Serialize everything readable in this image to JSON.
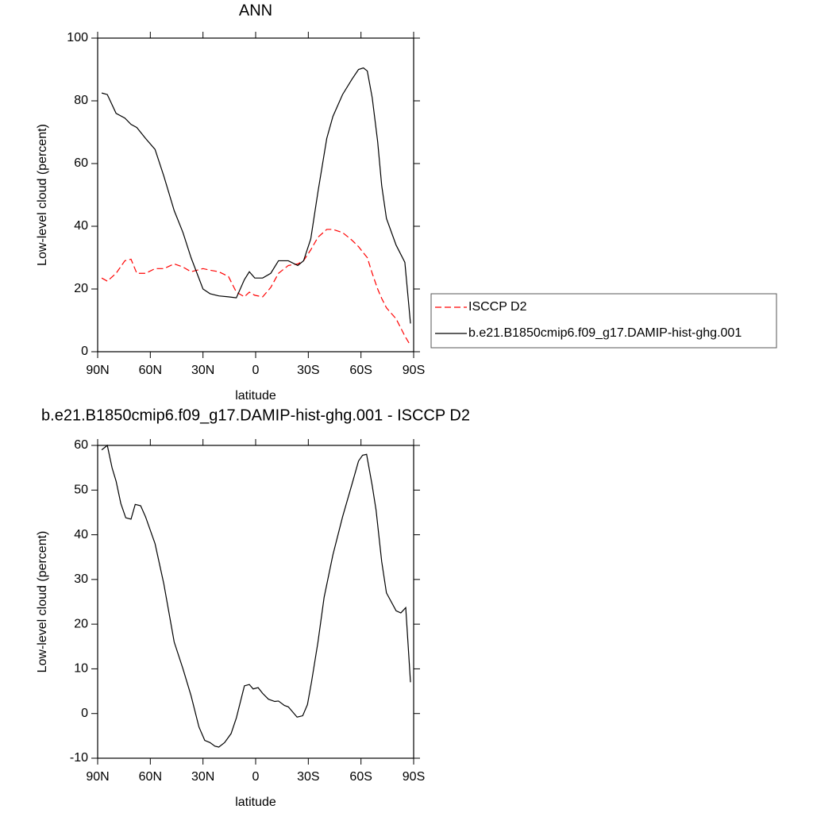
{
  "chart_data": [
    {
      "type": "line",
      "title": "ANN",
      "xlabel": "latitude",
      "ylabel": "Low-level cloud (percent)",
      "xlim": [
        90,
        -90
      ],
      "ylim": [
        0,
        100
      ],
      "xticks": [
        {
          "value": 90,
          "label": "90N"
        },
        {
          "value": 60,
          "label": "60N"
        },
        {
          "value": 30,
          "label": "30N"
        },
        0,
        {
          "value": -30,
          "label": "30S"
        },
        {
          "value": -60,
          "label": "60S"
        },
        {
          "value": -90,
          "label": "90S"
        }
      ],
      "yticks": [
        0,
        20,
        40,
        60,
        80,
        100
      ],
      "legend": "outside right",
      "x": [
        87.7,
        84.5,
        79.5,
        74.5,
        71,
        67.7,
        62.7,
        57.3,
        52.3,
        46.4,
        41.4,
        36.8,
        30,
        26,
        21,
        15.5,
        11,
        6.4,
        3.6,
        0.5,
        -4,
        -8.6,
        -13,
        -18.6,
        -24,
        -27.3,
        -31.4,
        -35.5,
        -40.5,
        -44,
        -49.5,
        -55,
        -58.6,
        -61.4,
        -63.6,
        -66.4,
        -69.5,
        -71.8,
        -74.5,
        -80,
        -85,
        -88.2
      ],
      "series": [
        {
          "name": "ISCCP D2",
          "color": "#ff0000",
          "dash": true,
          "values": [
            23.5,
            22.5,
            25,
            29,
            29.5,
            25,
            25,
            26.5,
            26.5,
            28,
            27,
            25.5,
            26.5,
            26,
            25.5,
            24,
            19,
            17.5,
            19,
            18,
            17.5,
            20.5,
            25,
            27.5,
            28,
            29,
            32.5,
            36.5,
            39,
            39,
            38,
            35.5,
            33.5,
            31.5,
            30,
            25,
            20,
            17,
            14,
            10.5,
            5,
            2
          ]
        },
        {
          "name": "b.e21.B1850cmip6.f09_g17.DAMIP-hist-ghg.001",
          "color": "#000000",
          "dash": false,
          "values": [
            82.5,
            82,
            76,
            74.5,
            72.5,
            71.5,
            68,
            64.5,
            56,
            45,
            38,
            30,
            20,
            18.5,
            17.8,
            17.5,
            17.2,
            23,
            25.5,
            23.5,
            23.5,
            25,
            29,
            29,
            27.5,
            29,
            36,
            51,
            68,
            75,
            82,
            87,
            90,
            90.5,
            89.5,
            81,
            67,
            53,
            42.5,
            34,
            28.5,
            9
          ]
        }
      ]
    },
    {
      "type": "line",
      "title": "b.e21.B1850cmip6.f09_g17.DAMIP-hist-ghg.001 - ISCCP D2",
      "xlabel": "latitude",
      "ylabel": "Low-level cloud (percent)",
      "xlim": [
        90,
        -90
      ],
      "ylim": [
        -10,
        60
      ],
      "xticks": [
        {
          "value": 90,
          "label": "90N"
        },
        {
          "value": 60,
          "label": "60N"
        },
        {
          "value": 30,
          "label": "30N"
        },
        0,
        {
          "value": -30,
          "label": "30S"
        },
        {
          "value": -60,
          "label": "60S"
        },
        {
          "value": -90,
          "label": "90S"
        }
      ],
      "yticks": [
        -10,
        0,
        10,
        20,
        30,
        40,
        50,
        60
      ],
      "x": [
        87.7,
        84.5,
        81.8,
        79.5,
        76.8,
        74,
        71,
        68.6,
        65.5,
        62.7,
        57.3,
        52.3,
        46.4,
        41.4,
        36.8,
        32.3,
        29,
        26,
        23.2,
        21,
        17.7,
        14,
        11,
        6.4,
        3.6,
        1.4,
        -1.4,
        -4,
        -7.3,
        -10.9,
        -13,
        -16.4,
        -18.6,
        -23.6,
        -26.8,
        -29.5,
        -31.8,
        -35.5,
        -39,
        -44,
        -49.5,
        -55,
        -58.6,
        -60.9,
        -63.2,
        -66.4,
        -68.6,
        -71.8,
        -74.5,
        -80,
        -82.7,
        -85.5,
        -88.2
      ],
      "series": [
        {
          "color": "#000000",
          "dash": false,
          "values": [
            59,
            60,
            55,
            52,
            47,
            43.8,
            43.5,
            46.8,
            46.5,
            44,
            38,
            29,
            16,
            10,
            4,
            -3,
            -6,
            -6.5,
            -7.3,
            -7.5,
            -6.5,
            -4.5,
            -1,
            6.2,
            6.5,
            5.5,
            5.8,
            4.5,
            3.2,
            2.7,
            2.8,
            1.8,
            1.5,
            -0.8,
            -0.5,
            2,
            7,
            16,
            26,
            35.5,
            44,
            51.5,
            56.5,
            57.8,
            58,
            51,
            45.5,
            34,
            27,
            23,
            22.5,
            23.7,
            7
          ]
        }
      ]
    }
  ]
}
